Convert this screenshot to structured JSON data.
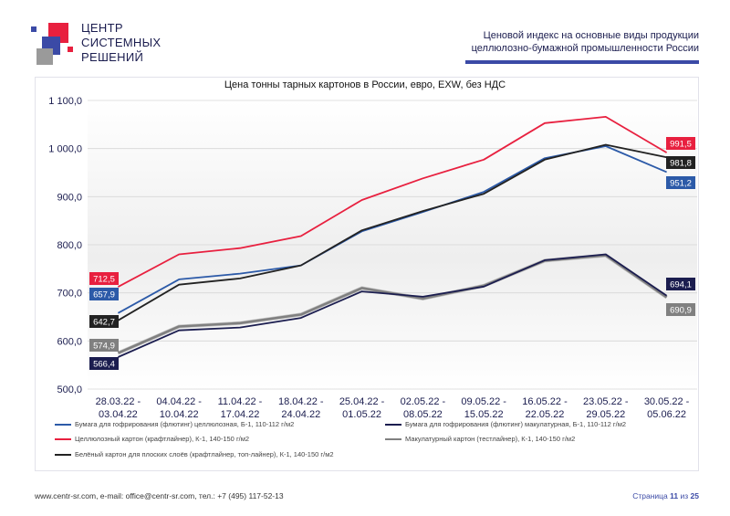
{
  "header": {
    "logo_lines": [
      "ЦЕНТР",
      "СИСТЕМНЫХ",
      "РЕШЕНИЙ"
    ],
    "doc_title_line1": "Ценовой индекс на основные виды продукции",
    "doc_title_line2": "целлюлозно-бумажной промышленности России"
  },
  "colors": {
    "brand_red": "#e8203f",
    "brand_navy": "#1b1d4f",
    "brand_blue": "#3b4aa6"
  },
  "chart_data": {
    "type": "line",
    "title": "Цена тонны тарных картонов в России, евро, EXW, без НДС",
    "ylim": [
      500,
      1100
    ],
    "y_ticks": [
      "500,0",
      "600,0",
      "700,0",
      "800,0",
      "900,0",
      "1 000,0",
      "1 100,0"
    ],
    "y_tick_values": [
      500,
      600,
      700,
      800,
      900,
      1000,
      1100
    ],
    "categories": [
      [
        "28.03.22 -",
        "03.04.22"
      ],
      [
        "04.04.22 -",
        "10.04.22"
      ],
      [
        "11.04.22 -",
        "17.04.22"
      ],
      [
        "18.04.22 -",
        "24.04.22"
      ],
      [
        "25.04.22 -",
        "01.05.22"
      ],
      [
        "02.05.22 -",
        "08.05.22"
      ],
      [
        "09.05.22 -",
        "15.05.22"
      ],
      [
        "16.05.22 -",
        "22.05.22"
      ],
      [
        "23.05.22 -",
        "29.05.22"
      ],
      [
        "30.05.22 -",
        "05.06.22"
      ]
    ],
    "grid": "horizontal",
    "legend_position": "bottom",
    "series": [
      {
        "name": "Бумага для гофрирования (флютинг) целлюлозная, Б-1, 110-112 г/м2",
        "color": "#2c5aa8",
        "values": [
          657.9,
          728,
          740,
          757,
          828,
          868,
          910,
          980,
          1005,
          951.2
        ],
        "start_label": "657,9",
        "end_label": "951,2"
      },
      {
        "name": "Бумага для гофрирования (флютинг) макулатурная, Б-1, 110-112 г/м2",
        "color": "#1b1d4f",
        "values": [
          566.4,
          622,
          628,
          648,
          703,
          692,
          713,
          768,
          780,
          694.1
        ],
        "start_label": "566,4",
        "end_label": "694,1"
      },
      {
        "name": "Целлюлозный картон (крафтлайнер), К-1, 140-150 г/м2",
        "color": "#e8203f",
        "values": [
          712.5,
          780,
          793,
          818,
          893,
          938,
          977,
          1053,
          1066,
          991.5
        ],
        "start_label": "712,5",
        "end_label": "991,5"
      },
      {
        "name": "Макулатурный картон (тестлайнер), К-1, 140-150 г/м2",
        "color": "#808080",
        "values": [
          574.9,
          630,
          637,
          655,
          710,
          688,
          715,
          767,
          778,
          690.9
        ],
        "start_label": "574,9",
        "end_label": "690,9"
      },
      {
        "name": "Белёный картон для плоских слоёв (крафтлайнер, топ-лайнер), К-1, 140-150 г/м2",
        "color": "#222222",
        "values": [
          642.7,
          717,
          730,
          757,
          830,
          870,
          906,
          977,
          1008,
          981.8
        ],
        "start_label": "642,7",
        "end_label": "981,8"
      }
    ]
  },
  "footer": {
    "contacts": "www.centr-sr.com, e-mail: office@centr-sr.com, тел.: +7 (495) 117-52-13",
    "page_prefix": "Страница",
    "page_number": "11",
    "page_of": "из",
    "page_total": "25"
  }
}
